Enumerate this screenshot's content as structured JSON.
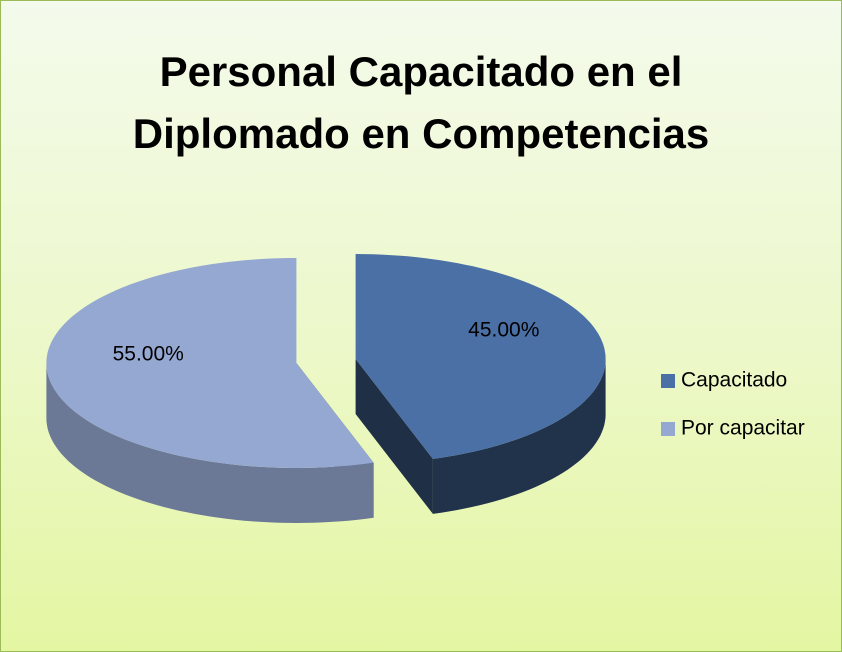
{
  "chart_data": {
    "type": "pie",
    "title": "Personal Capacitado en el Diplomado en Competencias",
    "categories": [
      "Capacitado",
      "Por capacitar"
    ],
    "values": [
      45,
      55
    ],
    "value_labels": [
      "45.00%",
      "55.00%"
    ],
    "colors": [
      "#4a70a6",
      "#95a8d2"
    ],
    "legend": "right"
  }
}
